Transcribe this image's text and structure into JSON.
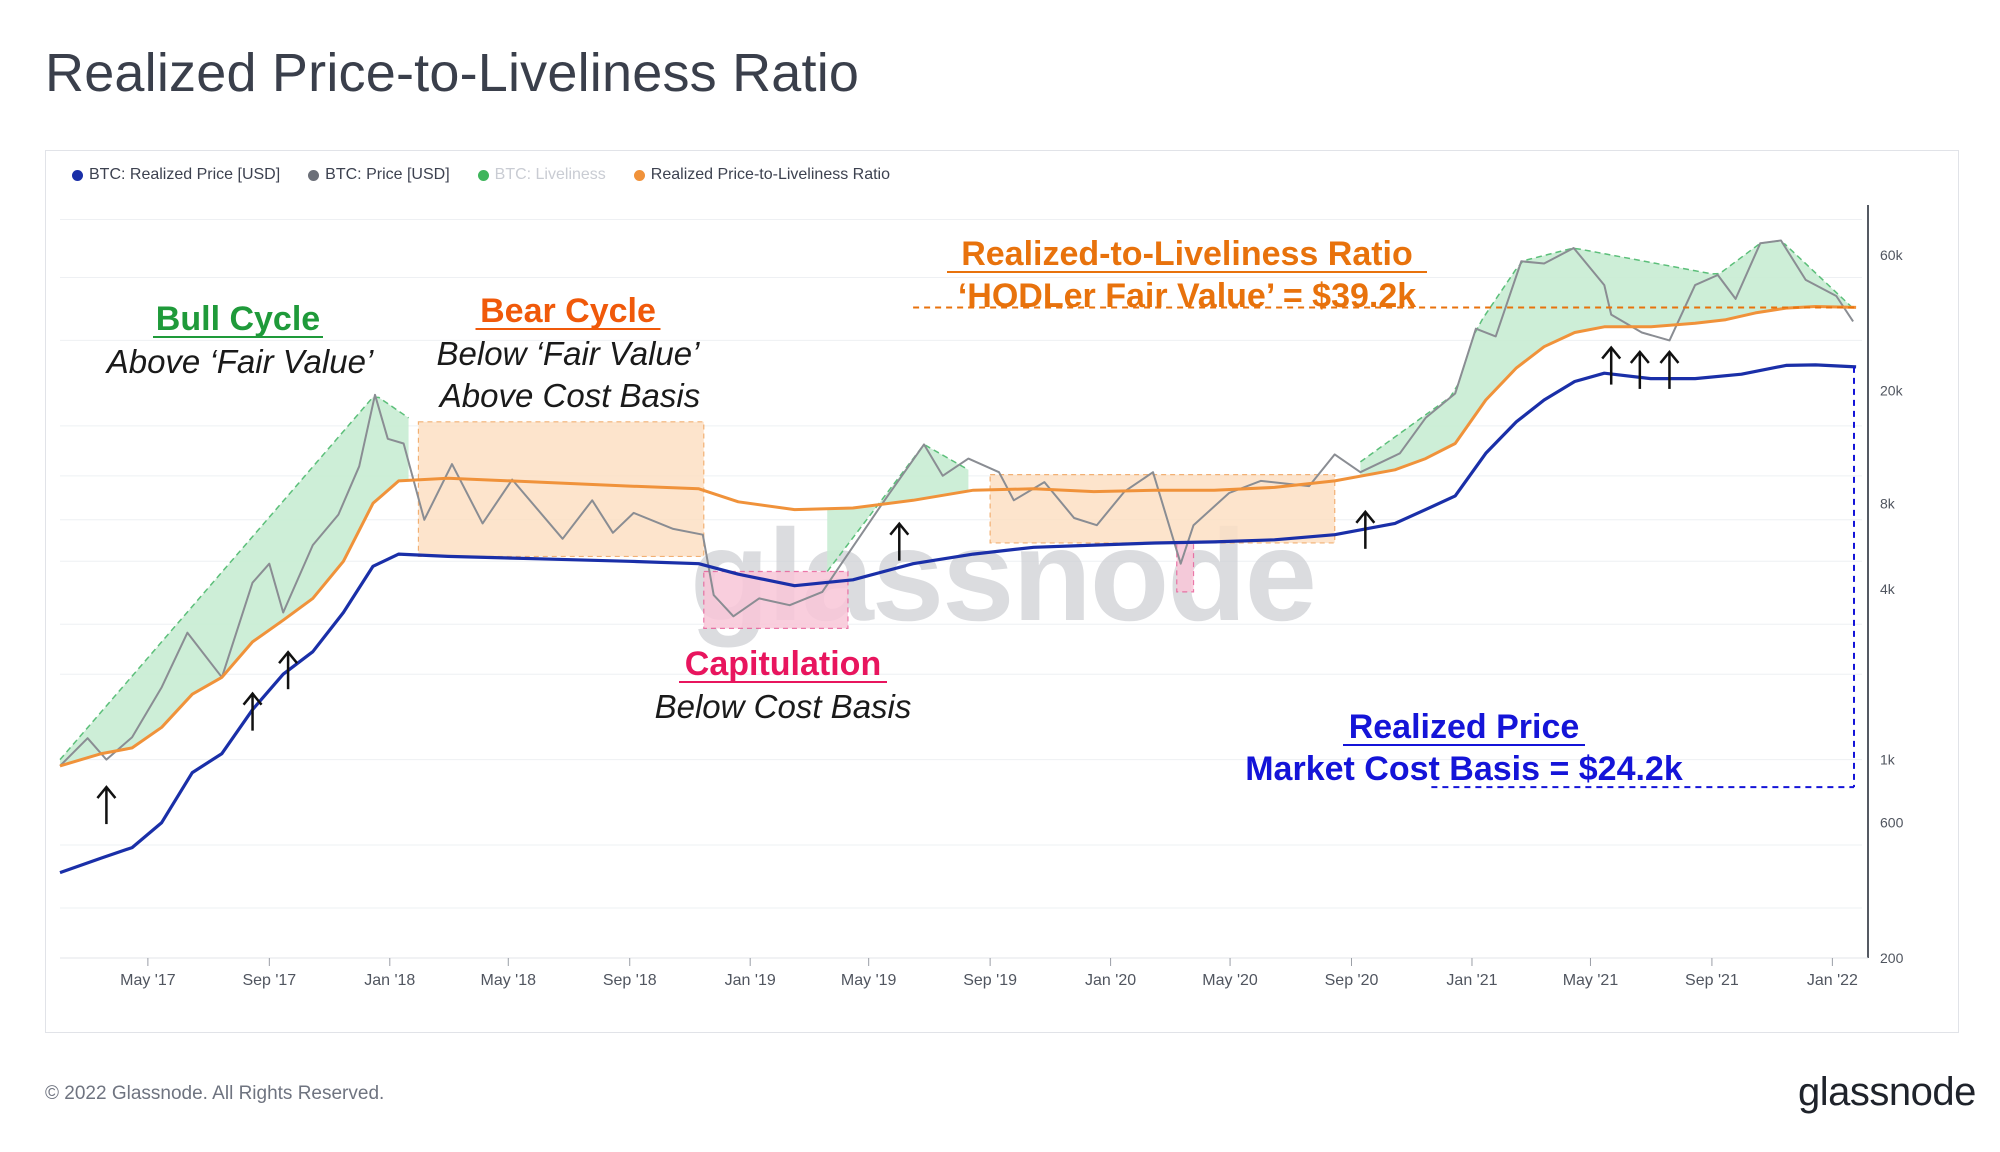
{
  "page": {
    "title": "Realized Price-to-Liveliness Ratio",
    "copyright": "© 2022 Glassnode. All Rights Reserved.",
    "brand": "glassnode"
  },
  "legend": [
    {
      "label": "BTC: Realized Price [USD]",
      "color": "#1a2fa8",
      "muted": false
    },
    {
      "label": "BTC: Price [USD]",
      "color": "#6b6f78",
      "muted": false
    },
    {
      "label": "BTC: Liveliness",
      "color": "#3fb55c",
      "muted": true
    },
    {
      "label": "Realized Price-to-Liveliness Ratio",
      "color": "#f0923a",
      "muted": false
    }
  ],
  "colors": {
    "realized": "#1a2fa8",
    "price": "#8a8d93",
    "ratio": "#f0923a",
    "bull_fill": "#c8ecd3",
    "bull_edge": "#5cbf7a",
    "bear_fill": "#fde0c4",
    "bear_edge": "#f0a35c",
    "cap_fill": "#f9c6d8",
    "cap_edge": "#e8609a",
    "bull_text": "#1f9a3a",
    "bear_text": "#f0590a",
    "cap_text": "#e8155e",
    "ratio_text": "#e8720c",
    "realized_text": "#1414d8"
  },
  "chart_data": {
    "type": "line",
    "title": "Realized Price-to-Liveliness Ratio",
    "yscale": "log",
    "ylim": [
      200,
      90000
    ],
    "xlim": [
      "2017-02-01",
      "2022-01-31"
    ],
    "x_ticks": [
      "May '17",
      "Sep '17",
      "Jan '18",
      "May '18",
      "Sep '18",
      "Jan '19",
      "May '19",
      "Sep '19",
      "Jan '20",
      "May '20",
      "Sep '20",
      "Jan '21",
      "May '21",
      "Sep '21",
      "Jan '22"
    ],
    "y_ticks": [
      "200",
      "600",
      "1k",
      "4k",
      "8k",
      "20k",
      "60k"
    ],
    "y_tick_values": [
      200,
      600,
      1000,
      4000,
      8000,
      20000,
      60000
    ],
    "series": [
      {
        "name": "BTC: Price [USD]",
        "points": [
          [
            "2017-02-01",
            950
          ],
          [
            "2017-03-01",
            1190
          ],
          [
            "2017-03-20",
            1000
          ],
          [
            "2017-04-15",
            1200
          ],
          [
            "2017-05-15",
            1800
          ],
          [
            "2017-06-10",
            2800
          ],
          [
            "2017-07-15",
            1950
          ],
          [
            "2017-08-15",
            4200
          ],
          [
            "2017-09-01",
            4900
          ],
          [
            "2017-09-15",
            3300
          ],
          [
            "2017-10-15",
            5700
          ],
          [
            "2017-11-10",
            7300
          ],
          [
            "2017-12-01",
            10800
          ],
          [
            "2017-12-17",
            19300
          ],
          [
            "2017-12-30",
            13500
          ],
          [
            "2018-01-15",
            13000
          ],
          [
            "2018-02-05",
            7000
          ],
          [
            "2018-03-05",
            11000
          ],
          [
            "2018-04-05",
            6800
          ],
          [
            "2018-05-05",
            9700
          ],
          [
            "2018-06-25",
            6000
          ],
          [
            "2018-07-25",
            8200
          ],
          [
            "2018-08-15",
            6300
          ],
          [
            "2018-09-05",
            7400
          ],
          [
            "2018-10-15",
            6500
          ],
          [
            "2018-11-14",
            6200
          ],
          [
            "2018-11-25",
            3800
          ],
          [
            "2018-12-15",
            3200
          ],
          [
            "2019-01-10",
            3700
          ],
          [
            "2019-02-10",
            3500
          ],
          [
            "2019-03-15",
            3900
          ],
          [
            "2019-04-05",
            5000
          ],
          [
            "2019-05-15",
            8000
          ],
          [
            "2019-06-26",
            12900
          ],
          [
            "2019-07-15",
            10000
          ],
          [
            "2019-08-10",
            11500
          ],
          [
            "2019-09-10",
            10300
          ],
          [
            "2019-09-25",
            8200
          ],
          [
            "2019-10-26",
            9500
          ],
          [
            "2019-11-25",
            7100
          ],
          [
            "2019-12-18",
            6700
          ],
          [
            "2020-01-15",
            8800
          ],
          [
            "2020-02-13",
            10300
          ],
          [
            "2020-03-12",
            4900
          ],
          [
            "2020-03-25",
            6700
          ],
          [
            "2020-04-30",
            8700
          ],
          [
            "2020-06-01",
            9600
          ],
          [
            "2020-07-20",
            9200
          ],
          [
            "2020-08-15",
            11900
          ],
          [
            "2020-09-10",
            10300
          ],
          [
            "2020-10-20",
            12000
          ],
          [
            "2020-11-15",
            16000
          ],
          [
            "2020-12-15",
            19500
          ],
          [
            "2021-01-05",
            33000
          ],
          [
            "2021-01-25",
            31000
          ],
          [
            "2021-02-20",
            57000
          ],
          [
            "2021-03-15",
            56000
          ],
          [
            "2021-04-14",
            63500
          ],
          [
            "2021-05-15",
            47000
          ],
          [
            "2021-05-22",
            37000
          ],
          [
            "2021-06-22",
            32000
          ],
          [
            "2021-07-20",
            30000
          ],
          [
            "2021-08-15",
            47000
          ],
          [
            "2021-09-07",
            51000
          ],
          [
            "2021-09-25",
            42000
          ],
          [
            "2021-10-20",
            66000
          ],
          [
            "2021-11-10",
            67500
          ],
          [
            "2021-12-05",
            49000
          ],
          [
            "2022-01-05",
            43000
          ],
          [
            "2022-01-22",
            35000
          ]
        ]
      },
      {
        "name": "BTC: Realized Price [USD]",
        "points": [
          [
            "2017-02-01",
            400
          ],
          [
            "2017-03-15",
            450
          ],
          [
            "2017-04-15",
            490
          ],
          [
            "2017-05-15",
            600
          ],
          [
            "2017-06-15",
            900
          ],
          [
            "2017-07-15",
            1050
          ],
          [
            "2017-08-15",
            1500
          ],
          [
            "2017-09-15",
            2000
          ],
          [
            "2017-10-15",
            2400
          ],
          [
            "2017-11-15",
            3300
          ],
          [
            "2017-12-15",
            4800
          ],
          [
            "2018-01-10",
            5300
          ],
          [
            "2018-03-01",
            5200
          ],
          [
            "2018-06-01",
            5100
          ],
          [
            "2018-09-01",
            5000
          ],
          [
            "2018-11-10",
            4900
          ],
          [
            "2018-12-20",
            4500
          ],
          [
            "2019-02-15",
            4100
          ],
          [
            "2019-04-15",
            4300
          ],
          [
            "2019-06-15",
            4900
          ],
          [
            "2019-08-15",
            5300
          ],
          [
            "2019-10-15",
            5600
          ],
          [
            "2019-12-15",
            5700
          ],
          [
            "2020-02-15",
            5800
          ],
          [
            "2020-04-15",
            5850
          ],
          [
            "2020-06-15",
            5950
          ],
          [
            "2020-08-15",
            6200
          ],
          [
            "2020-10-15",
            6800
          ],
          [
            "2020-11-15",
            7600
          ],
          [
            "2020-12-15",
            8500
          ],
          [
            "2021-01-15",
            12000
          ],
          [
            "2021-02-15",
            15500
          ],
          [
            "2021-03-15",
            18500
          ],
          [
            "2021-04-15",
            21500
          ],
          [
            "2021-05-15",
            23000
          ],
          [
            "2021-07-01",
            22000
          ],
          [
            "2021-08-15",
            22000
          ],
          [
            "2021-10-01",
            22800
          ],
          [
            "2021-11-15",
            24500
          ],
          [
            "2021-12-15",
            24600
          ],
          [
            "2022-01-25",
            24200
          ]
        ]
      },
      {
        "name": "Realized Price-to-Liveliness Ratio",
        "points": [
          [
            "2017-02-01",
            950
          ],
          [
            "2017-03-15",
            1050
          ],
          [
            "2017-04-15",
            1100
          ],
          [
            "2017-05-15",
            1300
          ],
          [
            "2017-06-15",
            1700
          ],
          [
            "2017-07-15",
            1950
          ],
          [
            "2017-08-15",
            2600
          ],
          [
            "2017-09-15",
            3100
          ],
          [
            "2017-10-15",
            3700
          ],
          [
            "2017-11-15",
            5000
          ],
          [
            "2017-12-15",
            8000
          ],
          [
            "2018-01-10",
            9600
          ],
          [
            "2018-03-01",
            9800
          ],
          [
            "2018-06-01",
            9500
          ],
          [
            "2018-09-01",
            9200
          ],
          [
            "2018-11-10",
            9000
          ],
          [
            "2018-12-20",
            8100
          ],
          [
            "2019-02-15",
            7600
          ],
          [
            "2019-04-15",
            7700
          ],
          [
            "2019-06-15",
            8200
          ],
          [
            "2019-08-15",
            8900
          ],
          [
            "2019-10-15",
            9000
          ],
          [
            "2019-12-15",
            8800
          ],
          [
            "2020-02-15",
            8900
          ],
          [
            "2020-04-15",
            8900
          ],
          [
            "2020-06-15",
            9100
          ],
          [
            "2020-08-15",
            9600
          ],
          [
            "2020-10-15",
            10500
          ],
          [
            "2020-11-15",
            11500
          ],
          [
            "2020-12-15",
            13000
          ],
          [
            "2021-01-15",
            18500
          ],
          [
            "2021-02-15",
            24000
          ],
          [
            "2021-03-15",
            28500
          ],
          [
            "2021-04-15",
            32000
          ],
          [
            "2021-05-15",
            33500
          ],
          [
            "2021-07-01",
            33500
          ],
          [
            "2021-08-15",
            34500
          ],
          [
            "2021-09-15",
            35500
          ],
          [
            "2021-10-15",
            37500
          ],
          [
            "2021-11-15",
            39000
          ],
          [
            "2021-12-15",
            39500
          ],
          [
            "2022-01-25",
            39200
          ]
        ]
      }
    ],
    "regions": [
      {
        "kind": "bull",
        "name": "Bull Cycle 2017",
        "x0": "2017-02-01",
        "x1": "2018-01-20",
        "top": [
          [
            "2017-02-01",
            1000
          ],
          [
            "2017-12-17",
            19300
          ],
          [
            "2018-01-20",
            16000
          ]
        ]
      },
      {
        "kind": "bull",
        "name": "Bull Cycle 2019",
        "x0": "2019-03-20",
        "x1": "2019-08-10",
        "top": [
          [
            "2019-03-20",
            4600
          ],
          [
            "2019-06-26",
            12900
          ],
          [
            "2019-08-10",
            10500
          ]
        ]
      },
      {
        "kind": "bull",
        "name": "Bull Cycle 2020",
        "x0": "2020-09-10",
        "x1": "2022-01-20",
        "top": [
          [
            "2020-09-10",
            11200
          ],
          [
            "2020-12-15",
            19500
          ],
          [
            "2021-01-05",
            33000
          ],
          [
            "2021-02-20",
            57000
          ],
          [
            "2021-04-14",
            63500
          ],
          [
            "2021-09-07",
            51000
          ],
          [
            "2021-10-20",
            66000
          ],
          [
            "2021-11-10",
            67500
          ],
          [
            "2022-01-20",
            39500
          ]
        ]
      },
      {
        "kind": "bear",
        "name": "Bear 2018",
        "x0": "2018-01-30",
        "x1": "2018-11-15",
        "y0": 5200,
        "y1": 15500
      },
      {
        "kind": "bear",
        "name": "Bear 2019-20",
        "x0": "2019-09-01",
        "x1": "2020-08-15",
        "y0": 5800,
        "y1": 10100
      },
      {
        "kind": "capitulation",
        "name": "Capitulation 2018",
        "x0": "2018-11-15",
        "x1": "2019-04-10",
        "y0": 2900,
        "y1": 4600
      },
      {
        "kind": "capitulation",
        "name": "Capitulation 2020",
        "x0": "2020-03-08",
        "x1": "2020-03-25",
        "y0": 3900,
        "y1": 5800
      }
    ],
    "arrows": [
      [
        "2017-03-20",
        820
      ],
      [
        "2017-08-15",
        1750
      ],
      [
        "2017-09-20",
        2450
      ],
      [
        "2019-06-01",
        6950
      ],
      [
        "2020-09-15",
        7650
      ],
      [
        "2021-05-22",
        29000
      ],
      [
        "2021-06-20",
        28000
      ],
      [
        "2021-07-20",
        28000
      ]
    ],
    "reference_lines": [
      {
        "name": "HODLer Fair Value",
        "value": 39200,
        "x0": "2019-06-15"
      },
      {
        "name": "Market Cost Basis",
        "value": 24200,
        "x0": "2020-12-01",
        "bottom": 800
      }
    ],
    "annotations": {
      "bull_title": "Bull Cycle",
      "bull_sub": "Above ‘Fair Value’",
      "bear_title": "Bear Cycle",
      "bear_sub1": "Below ‘Fair Value’",
      "bear_sub2": "Above Cost Basis",
      "cap_title": "Capitulation",
      "cap_sub": "Below Cost Basis",
      "ratio_title": "Realized-to-Liveliness Ratio",
      "ratio_sub": "‘HODLer Fair Value’ = $39.2k",
      "realized_title": "Realized Price",
      "realized_sub": "Market Cost Basis = $24.2k",
      "watermark": "glassnode"
    }
  }
}
